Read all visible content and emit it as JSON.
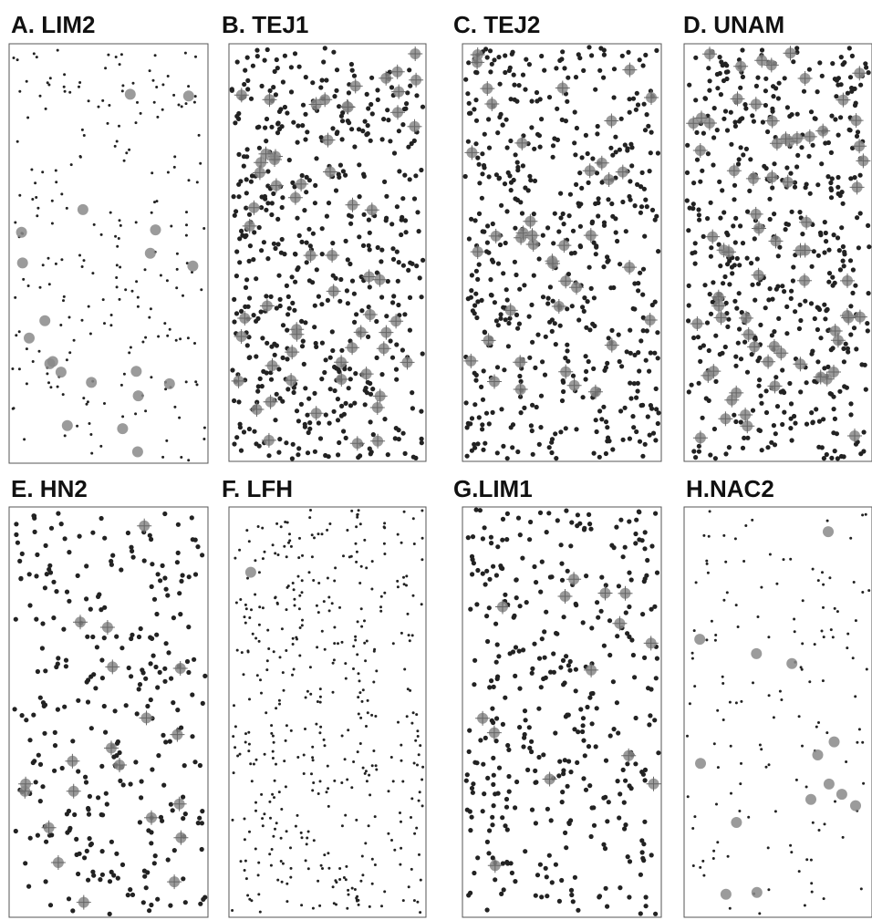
{
  "chart_data": {
    "type": "scatter",
    "description_hidden": false,
    "panels": [
      {
        "title": "A. LIM2",
        "point_style": "small",
        "highlight_style": "circle",
        "n_points": 220,
        "highlights": 20
      },
      {
        "title": "B. TEJ1",
        "point_style": "medium",
        "highlight_style": "cross",
        "n_points": 520,
        "highlights": 60
      },
      {
        "title": "C. TEJ2",
        "point_style": "medium",
        "highlight_style": "cross",
        "n_points": 520,
        "highlights": 40
      },
      {
        "title": "D. UNAM",
        "point_style": "medium",
        "highlight_style": "cross",
        "n_points": 500,
        "highlights": 70
      },
      {
        "title": "E. HN2",
        "point_style": "medium",
        "highlight_style": "cross",
        "n_points": 300,
        "highlights": 20
      },
      {
        "title": "F. LFH",
        "point_style": "small",
        "highlight_style": "circle",
        "n_points": 430,
        "highlights": 1
      },
      {
        "title": "G.LIM1",
        "point_style": "medium",
        "highlight_style": "cross",
        "n_points": 380,
        "highlights": 14
      },
      {
        "title": "H.NAC2",
        "point_style": "small",
        "highlight_style": "circle",
        "n_points": 140,
        "highlights": 14
      }
    ],
    "colors": {
      "point": "#222222",
      "highlight": "#8a8a8a",
      "frame": "#555555"
    }
  }
}
